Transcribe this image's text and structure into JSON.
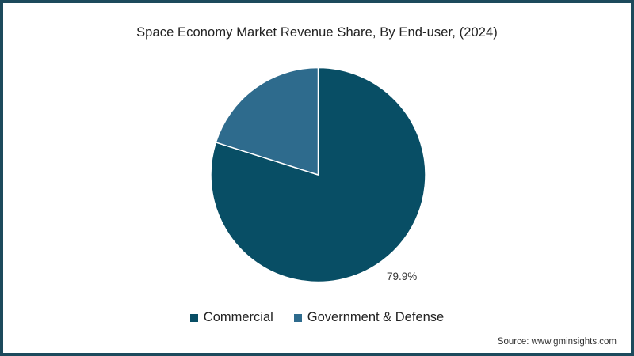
{
  "chart_data": {
    "type": "pie",
    "title": "Space Economy Market Revenue Share, By End-user, (2024)",
    "categories": [
      "Commercial",
      "Government & Defense"
    ],
    "values": [
      79.9,
      20.1
    ],
    "unit": "%",
    "colors": [
      "#084e65",
      "#2e6b8d"
    ],
    "data_labels": [
      {
        "category": "Commercial",
        "text": "79.9%"
      }
    ],
    "legend": {
      "position": "bottom",
      "entries": [
        "Commercial",
        "Government & Defense"
      ]
    },
    "start_angle_deg": 0,
    "direction": "clockwise"
  },
  "header": {
    "title": "Space Economy Market Revenue Share, By End-user, (2024)"
  },
  "labels": {
    "commercial_pct": "79.9%"
  },
  "legend": {
    "items": [
      {
        "label": "Commercial",
        "color": "#084e65"
      },
      {
        "label": "Government & Defense",
        "color": "#2e6b8d"
      }
    ]
  },
  "footer": {
    "source": "Source: www.gminsights.com"
  },
  "theme": {
    "border_color": "#1d4a5c"
  }
}
